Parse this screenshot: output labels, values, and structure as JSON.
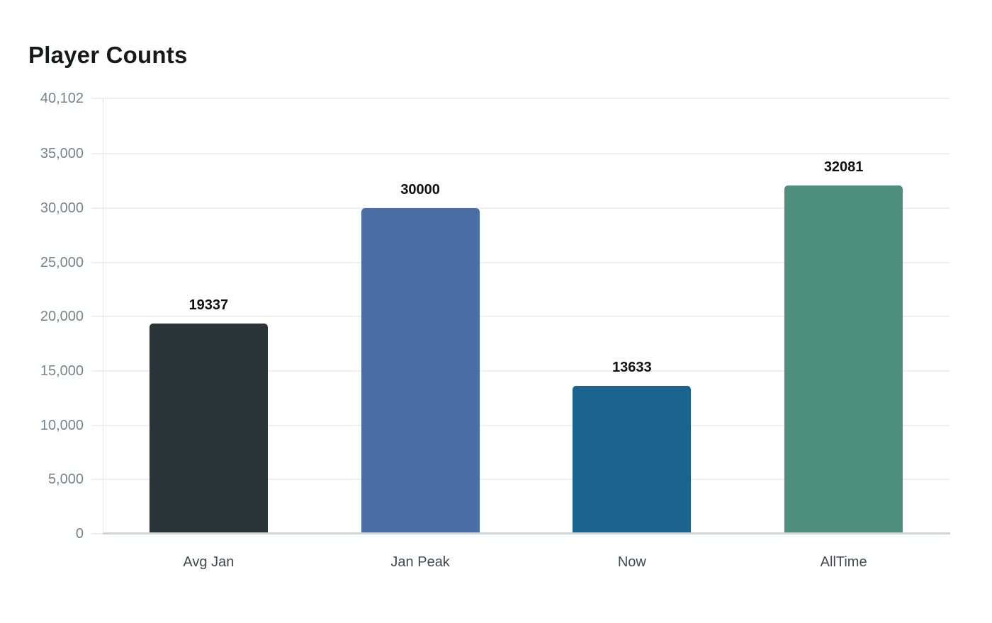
{
  "page": {
    "background": "#ffffff"
  },
  "chart_data": {
    "type": "bar",
    "title": "Player Counts",
    "categories": [
      "Avg Jan",
      "Jan Peak",
      "Now",
      "AllTime"
    ],
    "values": [
      19337,
      30000,
      13633,
      32081
    ],
    "value_labels": [
      "19337",
      "30000",
      "13633",
      "32081"
    ],
    "bar_colors": [
      "#2b3438",
      "#4a6fa6",
      "#1b648f",
      "#4d8e7c"
    ],
    "xlabel": "",
    "ylabel": "",
    "ylim": [
      0,
      40102
    ],
    "yticks": [
      0,
      5000,
      10000,
      15000,
      20000,
      25000,
      30000,
      35000,
      40102
    ],
    "ytick_labels": [
      "0",
      "5,000",
      "10,000",
      "15,000",
      "20,000",
      "25,000",
      "30,000",
      "35,000",
      "40,102"
    ],
    "grid": true,
    "legend": false,
    "colors": {
      "grid_line": "#efefef",
      "baseline": "#d3d6d9",
      "axis_dotted": "#cfcfcf",
      "ytick_text": "#76838c",
      "xtick_text": "#3f4a51",
      "value_text": "#111111",
      "title_text": "#17191c"
    }
  }
}
